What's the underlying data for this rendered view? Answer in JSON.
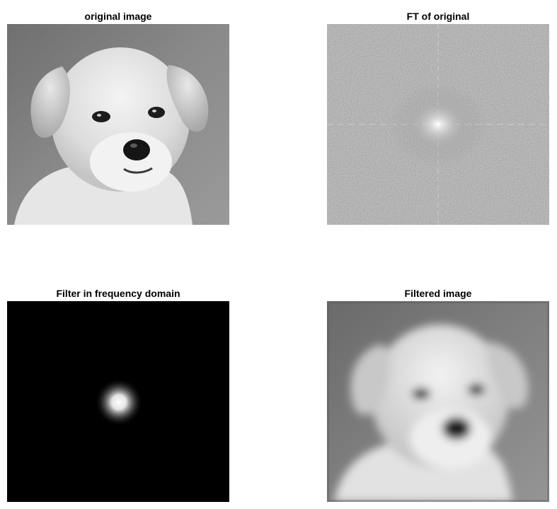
{
  "panels": [
    {
      "title": "original image",
      "content": "puppy-photo-grayscale"
    },
    {
      "title": "FT of original",
      "content": "fourier-magnitude-spectrum"
    },
    {
      "title": "Filter in frequency domain",
      "content": "gaussian-lowpass-filter"
    },
    {
      "title": "Filtered image",
      "content": "blurred-puppy-photo"
    }
  ]
}
